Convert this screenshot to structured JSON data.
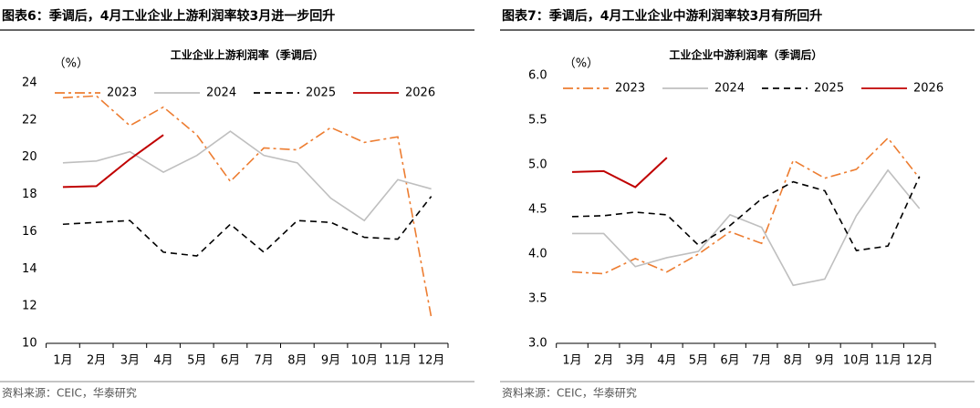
{
  "chart_data": [
    {
      "type": "line",
      "caption": "图表6：季调后，4月工业企业上游利润率较3月进一步回升",
      "title": "工业企业上游利润率（季调后）",
      "unit": "（%）",
      "categories": [
        "1月",
        "2月",
        "3月",
        "4月",
        "5月",
        "6月",
        "7月",
        "8月",
        "9月",
        "10月",
        "11月",
        "12月"
      ],
      "ylim": [
        10,
        24
      ],
      "yticks": [
        10,
        12,
        14,
        16,
        18,
        20,
        22,
        24
      ],
      "series": [
        {
          "name": "2023",
          "color": "#ED7D31",
          "dash": "dashdot",
          "values": [
            23.2,
            23.3,
            21.7,
            22.7,
            21.2,
            18.7,
            20.5,
            20.4,
            21.6,
            20.8,
            21.1,
            11.4
          ]
        },
        {
          "name": "2024",
          "color": "#BFBFBF",
          "dash": "solid",
          "values": [
            19.7,
            19.8,
            20.3,
            19.2,
            20.1,
            21.4,
            20.1,
            19.7,
            17.8,
            16.6,
            18.8,
            18.3
          ]
        },
        {
          "name": "2025",
          "color": "#000000",
          "dash": "dashed",
          "values": [
            16.4,
            16.5,
            16.6,
            14.9,
            14.7,
            16.4,
            14.9,
            16.6,
            16.5,
            15.7,
            15.6,
            17.9
          ]
        },
        {
          "name": "2026",
          "color": "#C00000",
          "dash": "solid",
          "values": [
            18.4,
            18.45,
            19.9,
            21.2,
            null,
            null,
            null,
            null,
            null,
            null,
            null,
            null
          ]
        }
      ],
      "source": "资料来源：CEIC，华泰研究"
    },
    {
      "type": "line",
      "caption": "图表7：季调后，4月工业企业中游利润率较3月有所回升",
      "title": "工业企业中游利润率（季调后）",
      "unit": "（%）",
      "categories": [
        "1月",
        "2月",
        "3月",
        "4月",
        "5月",
        "6月",
        "7月",
        "8月",
        "9月",
        "10月",
        "11月",
        "12月"
      ],
      "ylim": [
        3,
        6
      ],
      "yticks": [
        {
          "value": 3,
          "label": "3.0"
        },
        3.5,
        {
          "value": 4,
          "label": "4.0"
        },
        4.5,
        {
          "value": 5,
          "label": "5.0"
        },
        5.5,
        {
          "value": 6,
          "label": "6.0"
        }
      ],
      "series": [
        {
          "name": "2023",
          "color": "#ED7D31",
          "dash": "dashdot",
          "values": [
            3.8,
            3.78,
            3.95,
            3.8,
            4.0,
            4.25,
            4.12,
            5.05,
            4.85,
            4.95,
            5.3,
            4.85
          ]
        },
        {
          "name": "2024",
          "color": "#BFBFBF",
          "dash": "solid",
          "values": [
            4.23,
            4.23,
            3.86,
            3.96,
            4.03,
            4.44,
            4.3,
            3.65,
            3.72,
            4.43,
            4.94,
            4.51
          ]
        },
        {
          "name": "2025",
          "color": "#000000",
          "dash": "dashed",
          "values": [
            4.42,
            4.43,
            4.47,
            4.44,
            4.1,
            4.32,
            4.62,
            4.81,
            4.71,
            4.04,
            4.09,
            4.87
          ]
        },
        {
          "name": "2026",
          "color": "#C00000",
          "dash": "solid",
          "values": [
            4.92,
            4.93,
            4.75,
            5.08,
            null,
            null,
            null,
            null,
            null,
            null,
            null,
            null
          ]
        }
      ],
      "source": "资料来源：CEIC，华泰研究"
    }
  ]
}
